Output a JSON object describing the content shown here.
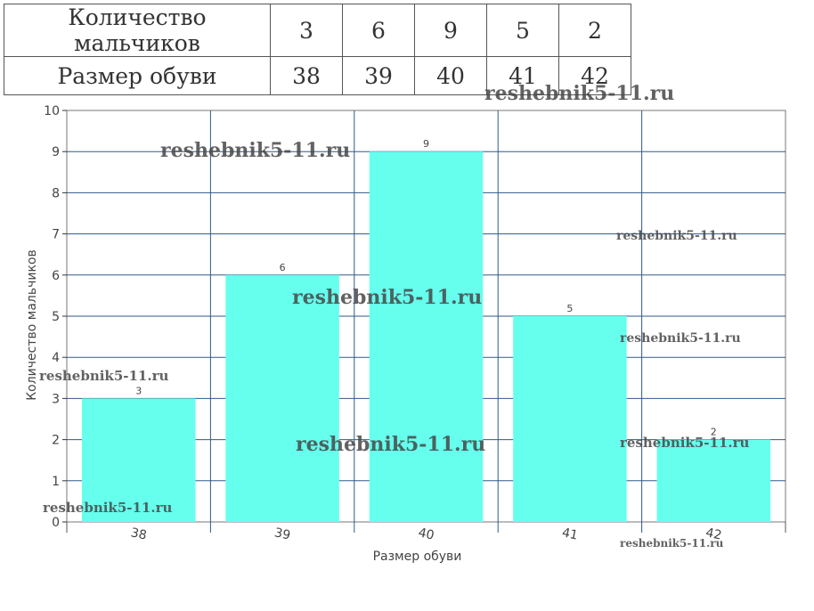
{
  "table": {
    "row1_label": "Количество мальчиков",
    "row2_label": "Размер обуви",
    "row1_values": [
      "3",
      "6",
      "9",
      "5",
      "2"
    ],
    "row2_values": [
      "38",
      "39",
      "40",
      "41",
      "42"
    ]
  },
  "chart_data": {
    "type": "bar",
    "categories": [
      "38",
      "39",
      "40",
      "41",
      "42"
    ],
    "values": [
      3,
      6,
      9,
      5,
      2
    ],
    "data_labels": [
      "3",
      "6",
      "9",
      "5",
      "2"
    ],
    "xlabel": "Размер обуви",
    "ylabel": "Количество мальчиков",
    "ylim": [
      0,
      10
    ],
    "yticks": [
      "0",
      "1",
      "2",
      "3",
      "4",
      "5",
      "6",
      "7",
      "8",
      "9",
      "10"
    ],
    "grid": true,
    "bar_color": "#66FFEE",
    "grid_color": "#2E5A8A"
  },
  "watermark_text": "reshebnik5-11.ru"
}
